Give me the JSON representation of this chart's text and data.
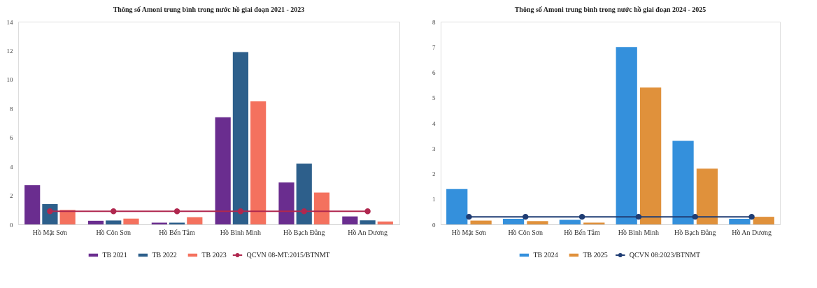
{
  "chart_data": [
    {
      "type": "bar",
      "title": "Thông số Amoni trung bình trong nước hồ giai đoạn 2021 - 2023",
      "categories": [
        "Hồ Mật Sơn",
        "Hồ Côn Sơn",
        "Hồ Bến Tắm",
        "Hồ Bình Minh",
        "Hồ Bạch Đằng",
        "Hồ An Dương"
      ],
      "series": [
        {
          "name": "TB 2021",
          "color": "#6a2d8f",
          "values": [
            2.7,
            0.25,
            0.12,
            7.4,
            2.9,
            0.55
          ]
        },
        {
          "name": "TB 2022",
          "color": "#2d5f8b",
          "values": [
            1.4,
            0.27,
            0.12,
            11.9,
            4.2,
            0.28
          ]
        },
        {
          "name": "TB 2023",
          "color": "#f4715e",
          "values": [
            1.0,
            0.4,
            0.5,
            8.5,
            2.2,
            0.2
          ]
        },
        {
          "name": "QCVN 08-MT:2015/BTNMT",
          "type": "line",
          "color": "#b0284f",
          "marker": "circle",
          "line_style": "solid",
          "values": [
            0.9,
            0.9,
            0.9,
            0.9,
            0.9,
            0.9
          ]
        }
      ],
      "ylim": [
        0,
        14
      ],
      "yticks": [
        0,
        2,
        4,
        6,
        8,
        10,
        12,
        14
      ],
      "legend": "bottom",
      "grid": false
    },
    {
      "type": "bar",
      "title": "Thông số Amoni trung bình trong nước hồ giai đoạn 2024 - 2025",
      "categories": [
        "Hồ Mật Sơn",
        "Hồ Côn Sơn",
        "Hồ Bến Tắm",
        "Hồ Bình Minh",
        "Hồ Bạch Đằng",
        "Hồ An Dương"
      ],
      "series": [
        {
          "name": "TB 2024",
          "color": "#3490dc",
          "values": [
            1.4,
            0.22,
            0.18,
            7.0,
            3.3,
            0.22
          ]
        },
        {
          "name": "TB 2025",
          "color": "#e0913b",
          "values": [
            0.15,
            0.13,
            0.07,
            5.4,
            2.2,
            0.3
          ]
        },
        {
          "name": "QCVN 08:2023/BTNMT",
          "type": "line",
          "color": "#1f3d74",
          "marker": "circle",
          "line_style": "solid",
          "values": [
            0.3,
            0.3,
            0.3,
            0.3,
            0.3,
            0.3
          ]
        }
      ],
      "ylim": [
        0,
        8
      ],
      "yticks": [
        0,
        1,
        2,
        3,
        4,
        5,
        6,
        7,
        8
      ],
      "legend": "bottom",
      "grid": false
    }
  ]
}
